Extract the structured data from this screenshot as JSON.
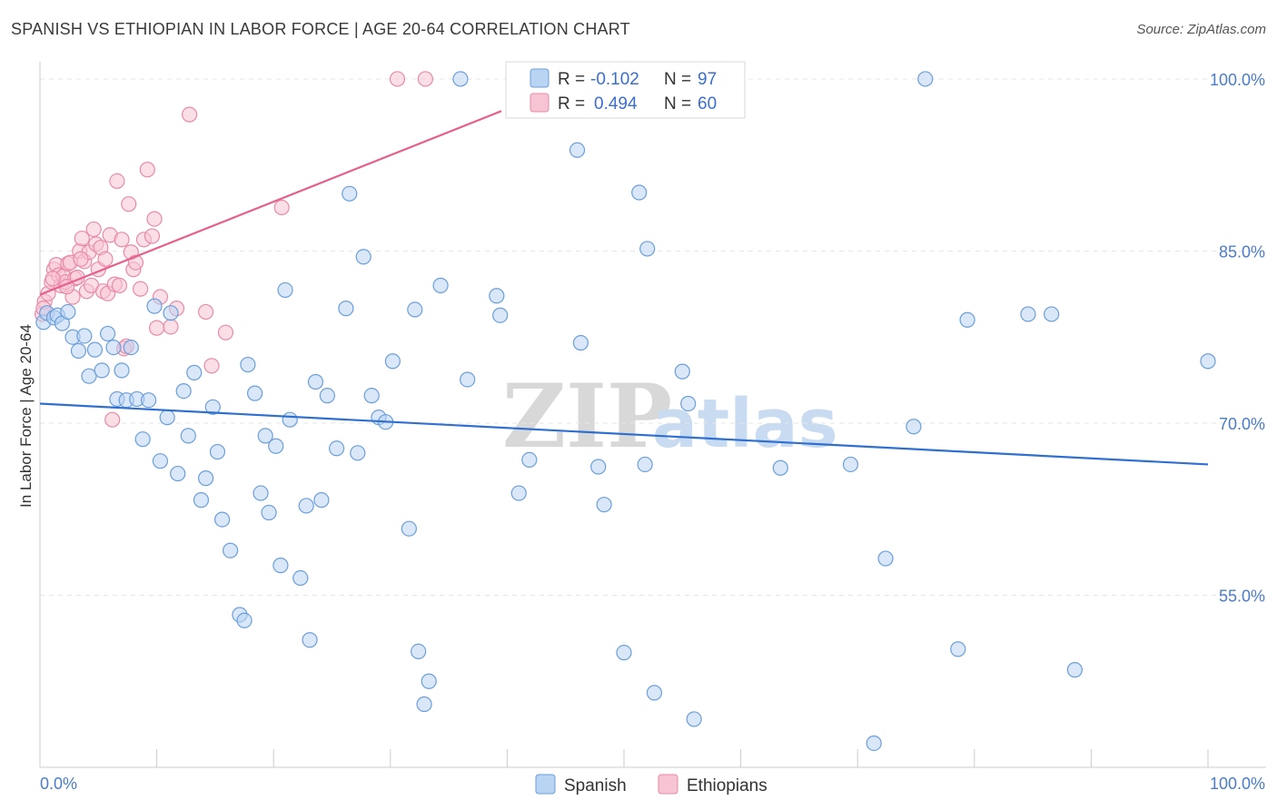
{
  "title": "SPANISH VS ETHIOPIAN IN LABOR FORCE | AGE 20-64 CORRELATION CHART",
  "source": "Source: ZipAtlas.com",
  "colors": {
    "spanish_fill": "#b9d3f2",
    "spanish_stroke": "#6a9fdc",
    "spanish_line": "#2f6fd0",
    "ethiopian_fill": "#f7c4d3",
    "ethiopian_stroke": "#e98aa8",
    "ethiopian_line": "#e5608e",
    "tick_text": "#4a7cc9",
    "grid": "#e6e6e6"
  },
  "legend": {
    "rows": [
      {
        "r_label": "R =",
        "r_value": "-0.102",
        "n_label": "N =",
        "n_value": "97"
      },
      {
        "r_label": "R =",
        "r_value": "0.494",
        "n_label": "N =",
        "n_value": "60"
      }
    ]
  },
  "chart_data": {
    "type": "scatter",
    "title": "SPANISH VS ETHIOPIAN IN LABOR FORCE | AGE 20-64 CORRELATION CHART",
    "xlabel": "",
    "ylabel": "In Labor Force | Age 20-64",
    "xlim": [
      0,
      100
    ],
    "ylim": [
      40,
      101.5
    ],
    "x_tick_labels": [
      "0.0%",
      "100.0%"
    ],
    "y_ticks": [
      55,
      70,
      85,
      100
    ],
    "y_tick_labels": [
      "55.0%",
      "70.0%",
      "85.0%",
      "100.0%"
    ],
    "grid": true,
    "legend_position": "bottom",
    "series": [
      {
        "name": "Spanish",
        "trend": {
          "x": [
            0,
            100
          ],
          "y": [
            71.7,
            66.4
          ]
        },
        "points": [
          [
            0.3,
            78.8
          ],
          [
            0.6,
            79.6
          ],
          [
            1.2,
            79.2
          ],
          [
            1.5,
            79.4
          ],
          [
            1.9,
            78.7
          ],
          [
            2.4,
            79.7
          ],
          [
            2.8,
            77.5
          ],
          [
            3.3,
            76.3
          ],
          [
            3.8,
            77.6
          ],
          [
            4.2,
            74.1
          ],
          [
            4.7,
            76.4
          ],
          [
            5.3,
            74.6
          ],
          [
            5.8,
            77.8
          ],
          [
            6.3,
            76.6
          ],
          [
            6.6,
            72.1
          ],
          [
            7.0,
            74.6
          ],
          [
            7.4,
            72.0
          ],
          [
            7.8,
            76.6
          ],
          [
            8.3,
            72.1
          ],
          [
            8.8,
            68.6
          ],
          [
            9.3,
            72.0
          ],
          [
            9.8,
            80.2
          ],
          [
            10.3,
            66.7
          ],
          [
            10.9,
            70.5
          ],
          [
            11.2,
            79.6
          ],
          [
            11.8,
            65.6
          ],
          [
            12.3,
            72.8
          ],
          [
            12.7,
            68.9
          ],
          [
            13.2,
            74.4
          ],
          [
            13.8,
            63.3
          ],
          [
            14.2,
            65.2
          ],
          [
            14.8,
            71.4
          ],
          [
            15.2,
            67.5
          ],
          [
            15.6,
            61.6
          ],
          [
            16.3,
            58.9
          ],
          [
            17.1,
            53.3
          ],
          [
            17.5,
            52.8
          ],
          [
            17.8,
            75.1
          ],
          [
            18.4,
            72.6
          ],
          [
            18.9,
            63.9
          ],
          [
            19.3,
            68.9
          ],
          [
            19.6,
            62.2
          ],
          [
            20.2,
            68.0
          ],
          [
            20.6,
            57.6
          ],
          [
            21.0,
            81.6
          ],
          [
            21.4,
            70.3
          ],
          [
            22.3,
            56.5
          ],
          [
            22.8,
            62.8
          ],
          [
            23.1,
            51.1
          ],
          [
            23.6,
            73.6
          ],
          [
            24.1,
            63.3
          ],
          [
            24.6,
            72.4
          ],
          [
            25.4,
            67.8
          ],
          [
            26.2,
            80.0
          ],
          [
            26.5,
            90.0
          ],
          [
            27.2,
            67.4
          ],
          [
            27.7,
            84.5
          ],
          [
            28.4,
            72.4
          ],
          [
            29.0,
            70.5
          ],
          [
            29.6,
            70.1
          ],
          [
            30.2,
            75.4
          ],
          [
            31.6,
            60.8
          ],
          [
            32.1,
            79.9
          ],
          [
            32.4,
            50.1
          ],
          [
            32.9,
            45.5
          ],
          [
            33.3,
            47.5
          ],
          [
            34.3,
            82.0
          ],
          [
            36.0,
            100.0
          ],
          [
            36.6,
            73.8
          ],
          [
            39.1,
            81.1
          ],
          [
            39.4,
            79.4
          ],
          [
            41.0,
            63.9
          ],
          [
            41.9,
            66.8
          ],
          [
            44.2,
            100.0
          ],
          [
            46.0,
            93.8
          ],
          [
            46.3,
            77.0
          ],
          [
            47.8,
            66.2
          ],
          [
            48.3,
            62.9
          ],
          [
            50.0,
            50.0
          ],
          [
            51.3,
            90.1
          ],
          [
            51.8,
            66.4
          ],
          [
            52.0,
            85.2
          ],
          [
            52.6,
            46.5
          ],
          [
            55.0,
            74.5
          ],
          [
            55.5,
            71.7
          ],
          [
            56.0,
            44.2
          ],
          [
            63.4,
            66.1
          ],
          [
            69.4,
            66.4
          ],
          [
            71.4,
            42.1
          ],
          [
            72.4,
            58.2
          ],
          [
            74.8,
            69.7
          ],
          [
            75.8,
            100.0
          ],
          [
            78.6,
            50.3
          ],
          [
            79.4,
            79.0
          ],
          [
            84.6,
            79.5
          ],
          [
            86.6,
            79.5
          ],
          [
            88.6,
            48.5
          ],
          [
            100.0,
            75.4
          ]
        ]
      },
      {
        "name": "Ethiopians",
        "trend": {
          "x": [
            0,
            39.5
          ],
          "y": [
            81.2,
            97.2
          ]
        },
        "points": [
          [
            0.2,
            79.5
          ],
          [
            0.4,
            80.6
          ],
          [
            0.7,
            81.3
          ],
          [
            1.0,
            82.3
          ],
          [
            1.2,
            83.4
          ],
          [
            1.4,
            83.8
          ],
          [
            1.6,
            82.9
          ],
          [
            1.8,
            82.0
          ],
          [
            2.0,
            82.8
          ],
          [
            2.2,
            82.3
          ],
          [
            2.4,
            83.9
          ],
          [
            2.6,
            84.0
          ],
          [
            2.8,
            81.0
          ],
          [
            3.0,
            82.6
          ],
          [
            3.2,
            82.7
          ],
          [
            3.4,
            85.0
          ],
          [
            3.6,
            86.1
          ],
          [
            3.8,
            84.1
          ],
          [
            4.0,
            81.5
          ],
          [
            4.2,
            84.9
          ],
          [
            4.4,
            82.0
          ],
          [
            4.6,
            86.9
          ],
          [
            4.8,
            85.6
          ],
          [
            5.0,
            83.4
          ],
          [
            5.2,
            85.3
          ],
          [
            5.4,
            81.5
          ],
          [
            5.6,
            84.3
          ],
          [
            5.8,
            81.3
          ],
          [
            6.0,
            86.4
          ],
          [
            6.2,
            70.3
          ],
          [
            6.4,
            82.1
          ],
          [
            6.6,
            91.1
          ],
          [
            6.8,
            82.0
          ],
          [
            7.0,
            86.0
          ],
          [
            7.2,
            76.5
          ],
          [
            7.4,
            76.7
          ],
          [
            7.6,
            89.1
          ],
          [
            7.8,
            84.9
          ],
          [
            8.0,
            83.4
          ],
          [
            8.2,
            84.0
          ],
          [
            8.6,
            81.7
          ],
          [
            8.9,
            86.0
          ],
          [
            9.2,
            92.1
          ],
          [
            9.6,
            86.3
          ],
          [
            9.8,
            87.8
          ],
          [
            10.0,
            78.3
          ],
          [
            10.3,
            81.0
          ],
          [
            11.2,
            78.4
          ],
          [
            11.7,
            80.0
          ],
          [
            12.8,
            96.9
          ],
          [
            14.2,
            79.7
          ],
          [
            14.7,
            75.0
          ],
          [
            15.9,
            77.9
          ],
          [
            20.7,
            88.8
          ],
          [
            30.6,
            100.0
          ],
          [
            33.0,
            100.0
          ],
          [
            0.3,
            80.0
          ],
          [
            1.1,
            82.6
          ],
          [
            2.3,
            81.9
          ],
          [
            3.5,
            84.3
          ]
        ]
      }
    ]
  }
}
